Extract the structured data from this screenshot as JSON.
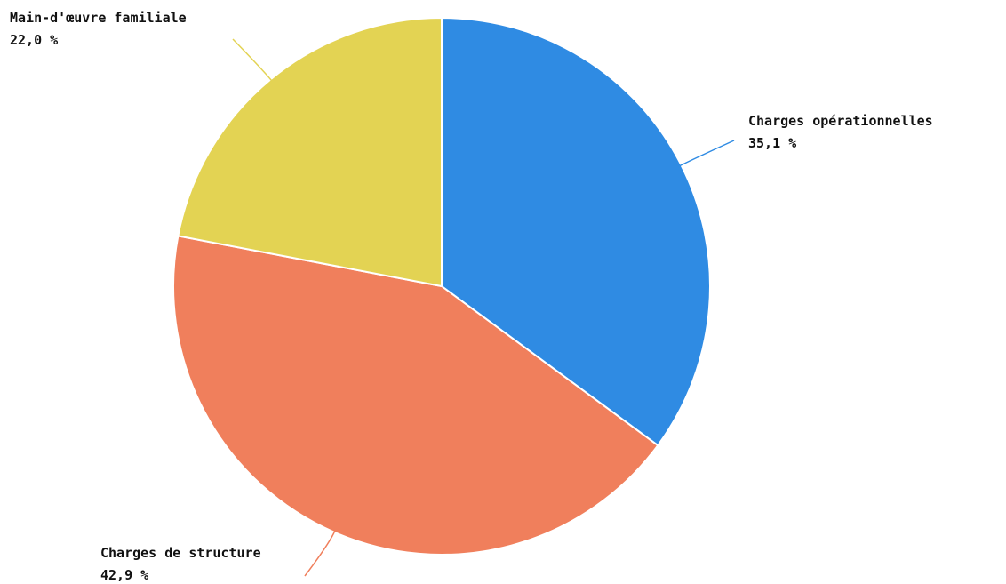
{
  "chart_data": {
    "type": "pie",
    "title": "",
    "slices": [
      {
        "label": "Charges opérationnelles",
        "value": 35.1,
        "value_label": "35,1 %",
        "color": "#2f8be3"
      },
      {
        "label": "Charges de structure",
        "value": 42.9,
        "value_label": "42,9 %",
        "color": "#f07f5c"
      },
      {
        "label": "Main-d'œuvre familiale",
        "value": 22.0,
        "value_label": "22,0 %",
        "color": "#e3d353"
      }
    ],
    "start_angle_deg": 0,
    "direction": "clockwise",
    "legend": "none",
    "labels": "outside with leader lines"
  }
}
